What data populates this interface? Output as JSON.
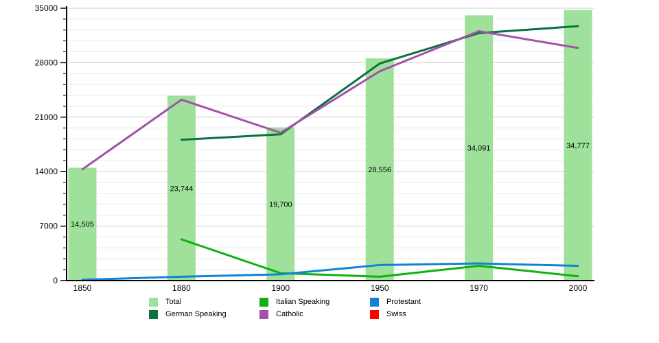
{
  "chart_data": {
    "type": "bar+line",
    "title": "",
    "xlabel": "",
    "ylabel": "",
    "categories": [
      "1850",
      "1880",
      "1900",
      "1950",
      "1970",
      "2000"
    ],
    "ylim": [
      0,
      35000
    ],
    "yticks": [
      0,
      7000,
      14000,
      21000,
      28000,
      35000
    ],
    "major_step": 7000,
    "minor_gridline_step": 1400,
    "grid": "horizontal",
    "legend_position": "bottom",
    "series": [
      {
        "name": "Total",
        "kind": "bar",
        "color": "#9fe19a",
        "values": [
          14505,
          23744,
          19700,
          28556,
          34091,
          34777
        ],
        "labels": [
          "14,505",
          "23,744",
          "19,700",
          "28,556",
          "34,091",
          "34,777"
        ]
      },
      {
        "name": "German Speaking",
        "kind": "line",
        "color": "#0b7140",
        "values": [
          null,
          18100,
          18800,
          27900,
          31800,
          32700
        ]
      },
      {
        "name": "Italian Speaking",
        "kind": "line",
        "color": "#10b010",
        "values": [
          null,
          5300,
          950,
          500,
          1900,
          550
        ]
      },
      {
        "name": "Catholic",
        "kind": "line",
        "color": "#a253a8",
        "values": [
          14300,
          23250,
          19000,
          26900,
          32050,
          29900
        ]
      },
      {
        "name": "Protestant",
        "kind": "line",
        "color": "#1282d4",
        "values": [
          100,
          500,
          800,
          2000,
          2200,
          1900
        ]
      },
      {
        "name": "Swiss",
        "kind": "line",
        "color": "#ff0000",
        "values": [
          null,
          null,
          null,
          null,
          null,
          null
        ]
      }
    ]
  }
}
